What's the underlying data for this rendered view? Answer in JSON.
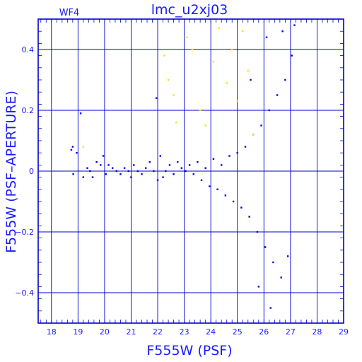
{
  "chart_data": {
    "type": "scatter",
    "title": "lmc_u2xj03",
    "subtitle": "WF4",
    "xlabel": "F555W (PSF)",
    "ylabel": "F555W (PSF–APERTURE)",
    "xlim": [
      17.5,
      29.0
    ],
    "ylim": [
      -0.5,
      0.5
    ],
    "x_ticks": [
      18,
      19,
      20,
      21,
      22,
      23,
      24,
      25,
      26,
      27,
      28,
      29
    ],
    "y_ticks": [
      0.4,
      0.2,
      0,
      -0.2,
      -0.4
    ],
    "y_tick_labels": [
      "0.4",
      "0.2",
      "0",
      "−0.2",
      "−0.4"
    ],
    "grid": true,
    "colors": {
      "axes": "#0000cc",
      "text": "#1a1aff",
      "main_points": "#0000ee",
      "flagged_points": "#f2e600"
    },
    "series": [
      {
        "color": "#0000ee",
        "points": [
          [
            18.75,
            0.07
          ],
          [
            18.8,
            0.08
          ],
          [
            18.82,
            -0.01
          ],
          [
            18.95,
            0.06
          ],
          [
            19.1,
            0.19
          ],
          [
            19.2,
            -0.02
          ],
          [
            19.35,
            0.01
          ],
          [
            19.45,
            0.0
          ],
          [
            19.55,
            -0.02
          ],
          [
            19.7,
            0.03
          ],
          [
            19.85,
            0.02
          ],
          [
            19.95,
            0.05
          ],
          [
            20.05,
            -0.01
          ],
          [
            20.15,
            0.02
          ],
          [
            20.3,
            0.01
          ],
          [
            20.45,
            0.0
          ],
          [
            20.6,
            -0.01
          ],
          [
            20.75,
            0.01
          ],
          [
            20.9,
            0.0
          ],
          [
            21.0,
            -0.02
          ],
          [
            21.1,
            0.02
          ],
          [
            21.25,
            0.0
          ],
          [
            21.4,
            -0.01
          ],
          [
            21.55,
            0.01
          ],
          [
            21.7,
            0.03
          ],
          [
            21.85,
            0.0
          ],
          [
            21.95,
            0.24
          ],
          [
            22.0,
            -0.03
          ],
          [
            22.1,
            0.05
          ],
          [
            22.2,
            -0.02
          ],
          [
            22.3,
            0.0
          ],
          [
            22.45,
            0.02
          ],
          [
            22.6,
            -0.01
          ],
          [
            22.75,
            0.03
          ],
          [
            22.9,
            0.01
          ],
          [
            23.05,
            0.0
          ],
          [
            23.2,
            0.02
          ],
          [
            23.35,
            -0.01
          ],
          [
            23.5,
            0.03
          ],
          [
            23.65,
            -0.03
          ],
          [
            23.8,
            0.01
          ],
          [
            23.95,
            -0.05
          ],
          [
            24.1,
            0.04
          ],
          [
            24.25,
            -0.06
          ],
          [
            24.4,
            0.02
          ],
          [
            24.55,
            -0.08
          ],
          [
            24.7,
            0.05
          ],
          [
            24.85,
            -0.1
          ],
          [
            25.0,
            0.06
          ],
          [
            25.15,
            -0.12
          ],
          [
            25.3,
            0.08
          ],
          [
            25.45,
            -0.15
          ],
          [
            25.6,
            0.12
          ],
          [
            25.75,
            -0.2
          ],
          [
            25.9,
            0.15
          ],
          [
            26.05,
            -0.25
          ],
          [
            26.2,
            0.2
          ],
          [
            26.35,
            -0.3
          ],
          [
            26.5,
            0.25
          ],
          [
            26.65,
            -0.35
          ],
          [
            26.8,
            0.3
          ],
          [
            26.9,
            -0.28
          ],
          [
            27.05,
            0.38
          ],
          [
            27.15,
            0.48
          ],
          [
            26.25,
            -0.45
          ],
          [
            25.8,
            -0.38
          ],
          [
            26.1,
            0.44
          ],
          [
            26.7,
            0.46
          ],
          [
            25.5,
            0.3
          ]
        ]
      },
      {
        "color": "#f2e600",
        "points": [
          [
            19.2,
            0.08
          ],
          [
            22.25,
            0.38
          ],
          [
            22.4,
            0.3
          ],
          [
            22.6,
            0.25
          ],
          [
            22.7,
            0.16
          ],
          [
            23.1,
            0.44
          ],
          [
            23.3,
            0.4
          ],
          [
            23.6,
            0.2
          ],
          [
            23.8,
            0.15
          ],
          [
            24.1,
            0.36
          ],
          [
            24.3,
            0.47
          ],
          [
            24.6,
            0.29
          ],
          [
            24.8,
            0.4
          ],
          [
            25.0,
            0.23
          ],
          [
            25.2,
            0.46
          ],
          [
            25.4,
            0.33
          ],
          [
            25.6,
            0.12
          ]
        ]
      }
    ]
  }
}
